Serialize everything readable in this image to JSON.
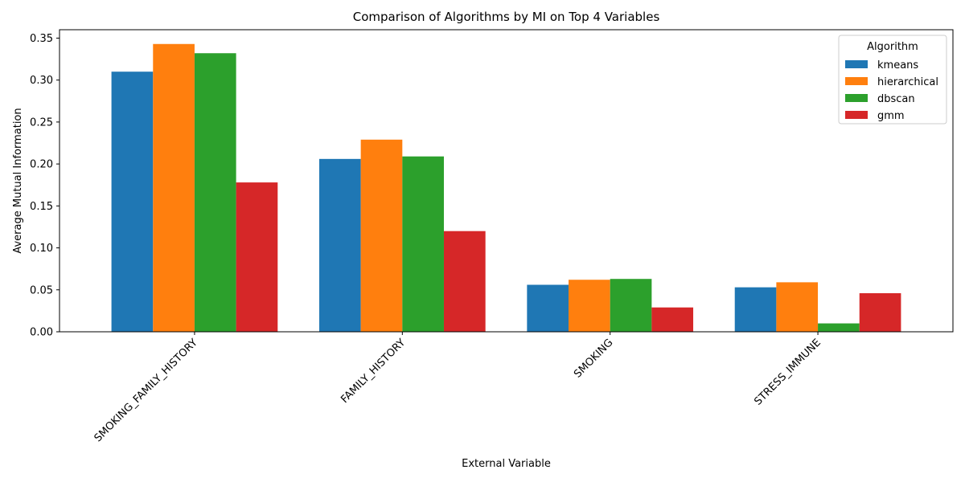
{
  "chart_data": {
    "type": "bar",
    "title": "Comparison of Algorithms by MI on Top 4 Variables",
    "xlabel": "External Variable",
    "ylabel": "Average Mutual Information",
    "categories": [
      "SMOKING_FAMILY_HISTORY",
      "FAMILY_HISTORY",
      "SMOKING",
      "STRESS_IMMUNE"
    ],
    "ylim": [
      0,
      0.36
    ],
    "yticks": [
      0.0,
      0.05,
      0.1,
      0.15,
      0.2,
      0.25,
      0.3,
      0.35
    ],
    "ytick_labels": [
      "0.00",
      "0.05",
      "0.10",
      "0.15",
      "0.20",
      "0.25",
      "0.30",
      "0.35"
    ],
    "legend_title": "Algorithm",
    "legend_position": "top-right",
    "grid": false,
    "series": [
      {
        "name": "kmeans",
        "color": "#1f77b4",
        "values": [
          0.31,
          0.206,
          0.056,
          0.053
        ]
      },
      {
        "name": "hierarchical",
        "color": "#ff7f0e",
        "values": [
          0.343,
          0.229,
          0.062,
          0.059
        ]
      },
      {
        "name": "dbscan",
        "color": "#2ca02c",
        "values": [
          0.332,
          0.209,
          0.063,
          0.01
        ]
      },
      {
        "name": "gmm",
        "color": "#d62728",
        "values": [
          0.178,
          0.12,
          0.029,
          0.046
        ]
      }
    ]
  }
}
